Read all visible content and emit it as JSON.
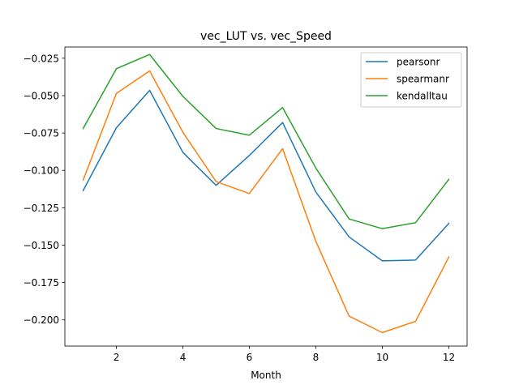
{
  "chart_data": {
    "type": "line",
    "title": "vec_LUT vs. vec_Speed",
    "xlabel": "Month",
    "ylabel": "",
    "x": [
      1,
      2,
      3,
      4,
      5,
      6,
      7,
      8,
      9,
      10,
      11,
      12
    ],
    "xlim": [
      0.45,
      12.55
    ],
    "ylim": [
      -0.2175,
      -0.0175
    ],
    "xticks": [
      2,
      4,
      6,
      8,
      10,
      12
    ],
    "yticks": [
      -0.2,
      -0.175,
      -0.15,
      -0.125,
      -0.1,
      -0.075,
      -0.05,
      -0.025
    ],
    "ytick_labels": [
      "−0.200",
      "−0.175",
      "−0.150",
      "−0.125",
      "−0.100",
      "−0.075",
      "−0.050",
      "−0.025"
    ],
    "grid": false,
    "legend_position": "top-right",
    "series": [
      {
        "name": "pearsonr",
        "color": "#1f77b4",
        "values": [
          -0.1135,
          -0.0715,
          -0.0465,
          -0.088,
          -0.11,
          -0.09,
          -0.068,
          -0.1145,
          -0.1445,
          -0.1605,
          -0.16,
          -0.1355
        ]
      },
      {
        "name": "spearmanr",
        "color": "#ff7f0e",
        "values": [
          -0.1065,
          -0.0485,
          -0.0335,
          -0.0745,
          -0.1075,
          -0.1155,
          -0.0855,
          -0.1475,
          -0.1975,
          -0.2085,
          -0.201,
          -0.158
        ]
      },
      {
        "name": "kendalltau",
        "color": "#2ca02c",
        "values": [
          -0.072,
          -0.032,
          -0.0225,
          -0.0505,
          -0.072,
          -0.0765,
          -0.058,
          -0.0985,
          -0.1325,
          -0.139,
          -0.135,
          -0.106
        ]
      }
    ]
  }
}
